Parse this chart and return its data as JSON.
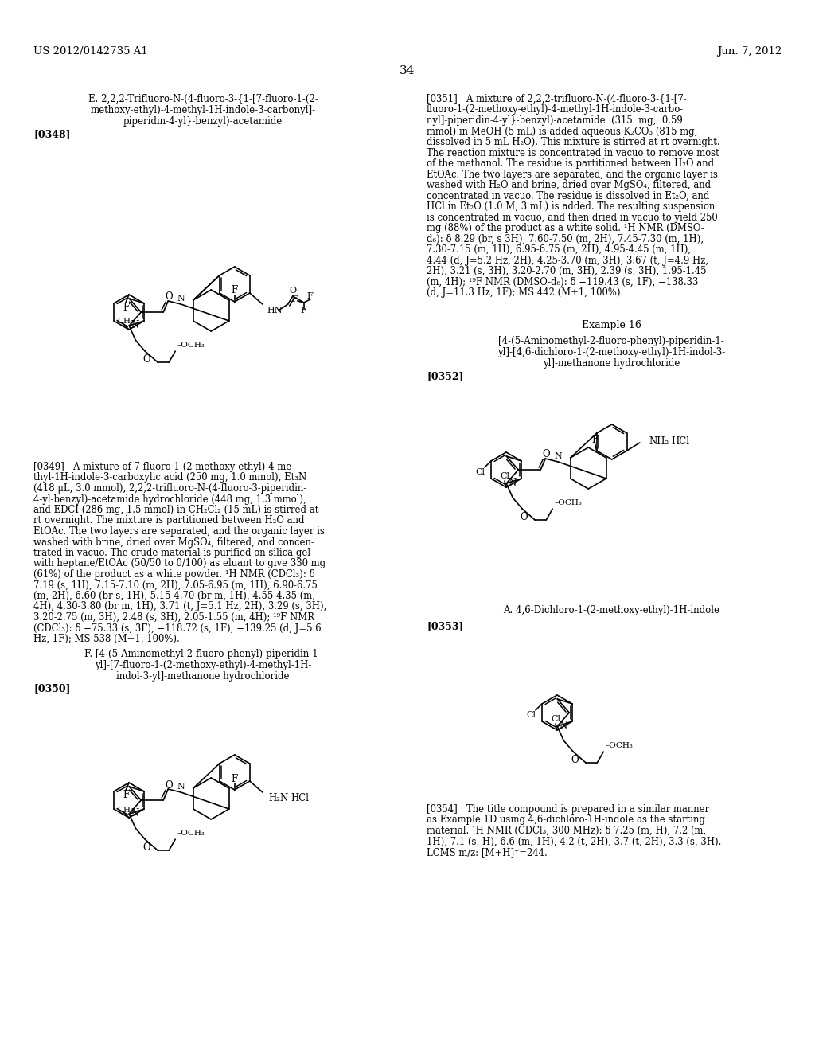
{
  "bg": "#ffffff",
  "header_left": "US 2012/0142735 A1",
  "header_right": "Jun. 7, 2012",
  "page_num": "34",
  "sec_e_title": [
    "E. 2,2,2-Trifluoro-N-(4-fluoro-3-{1-[7-fluoro-1-(2-",
    "methoxy-ethyl)-4-methyl-1H-indole-3-carbonyl]-",
    "piperidin-4-yl}-benzyl)-acetamide"
  ],
  "label_0348": "[0348]",
  "para349": [
    "[0349]   A mixture of 7-fluoro-1-(2-methoxy-ethyl)-4-me-",
    "thyl-1H-indole-3-carboxylic acid (250 mg, 1.0 mmol), Et₃N",
    "(418 μL, 3.0 mmol), 2,2,2-trifluoro-N-(4-fluoro-3-piperidin-",
    "4-yl-benzyl)-acetamide hydrochloride (448 mg, 1.3 mmol),",
    "and EDCI (286 mg, 1.5 mmol) in CH₂Cl₂ (15 mL) is stirred at",
    "rt overnight. The mixture is partitioned between H₂O and",
    "EtOAc. The two layers are separated, and the organic layer is",
    "washed with brine, dried over MgSO₄, filtered, and concen-",
    "trated in vacuo. The crude material is purified on silica gel",
    "with heptane/EtOAc (50/50 to 0/100) as eluant to give 330 mg",
    "(61%) of the product as a white powder. ¹H NMR (CDCl₃): δ",
    "7.19 (s, 1H), 7.15-7.10 (m, 2H), 7.05-6.95 (m, 1H), 6.90-6.75",
    "(m, 2H), 6.60 (br s, 1H), 5.15-4.70 (br m, 1H), 4.55-4.35 (m,",
    "4H), 4.30-3.80 (br m, 1H), 3.71 (t, J=5.1 Hz, 2H), 3.29 (s, 3H),",
    "3.20-2.75 (m, 3H), 2.48 (s, 3H), 2.05-1.55 (m, 4H); ¹⁹F NMR",
    "(CDCl₃): δ −75.33 (s, 3F), −118.72 (s, 1F), −139.25 (d, J=5.6",
    "Hz, 1F); MS 538 (M+1, 100%)."
  ],
  "sec_f_title": [
    "F. [4-(5-Aminomethyl-2-fluoro-phenyl)-piperidin-1-",
    "yl]-[7-fluoro-1-(2-methoxy-ethyl)-4-methyl-1H-",
    "indol-3-yl]-methanone hydrochloride"
  ],
  "label_0350": "[0350]",
  "para351": [
    "[0351]   A mixture of 2,2,2-trifluoro-N-(4-fluoro-3-{1-[7-",
    "fluoro-1-(2-methoxy-ethyl)-4-methyl-1H-indole-3-carbo-",
    "nyl]-piperidin-4-yl}-benzyl)-acetamide  (315  mg,  0.59",
    "mmol) in MeOH (5 mL) is added aqueous K₂CO₃ (815 mg,",
    "dissolved in 5 mL H₂O). This mixture is stirred at rt overnight.",
    "The reaction mixture is concentrated in vacuo to remove most",
    "of the methanol. The residue is partitioned between H₂O and",
    "EtOAc. The two layers are separated, and the organic layer is",
    "washed with H₂O and brine, dried over MgSO₄, filtered, and",
    "concentrated in vacuo. The residue is dissolved in Et₂O, and",
    "HCl in Et₂O (1.0 M, 3 mL) is added. The resulting suspension",
    "is concentrated in vacuo, and then dried in vacuo to yield 250",
    "mg (88%) of the product as a white solid. ¹H NMR (DMSO-",
    "d₆): δ 8.29 (br, s 3H), 7.60-7.50 (m, 2H), 7.45-7.30 (m, 1H),",
    "7.30-7.15 (m, 1H), 6.95-6.75 (m, 2H), 4.95-4.45 (m, 1H),",
    "4.44 (d, J=5.2 Hz, 2H), 4.25-3.70 (m, 3H), 3.67 (t, J=4.9 Hz,",
    "2H), 3.21 (s, 3H), 3.20-2.70 (m, 3H), 2.39 (s, 3H), 1.95-1.45",
    "(m, 4H); ¹⁹F NMR (DMSO-d₆): δ −119.43 (s, 1F), −138.33",
    "(d, J=11.3 Hz, 1F); MS 442 (M+1, 100%)."
  ],
  "ex16": "Example 16",
  "ex16_title": [
    "[4-(5-Aminomethyl-2-fluoro-phenyl)-piperidin-1-",
    "yl]-[4,6-dichloro-1-(2-methoxy-ethyl)-1H-indol-3-",
    "yl]-methanone hydrochloride"
  ],
  "label_0352": "[0352]",
  "sec_a_title": "A. 4,6-Dichloro-1-(2-methoxy-ethyl)-1H-indole",
  "label_0353": "[0353]",
  "para354": [
    "[0354]   The title compound is prepared in a similar manner",
    "as Example 1D using 4,6-dichloro-1H-indole as the starting",
    "material. ¹H NMR (CDCl₃, 300 MHz): δ 7.25 (m, H), 7.2 (m,",
    "1H), 7.1 (s, H), 6.6 (m, 1H), 4.2 (t, 2H), 3.7 (t, 2H), 3.3 (s, 3H).",
    "LCMS m/z: [M+H]⁺=244."
  ]
}
